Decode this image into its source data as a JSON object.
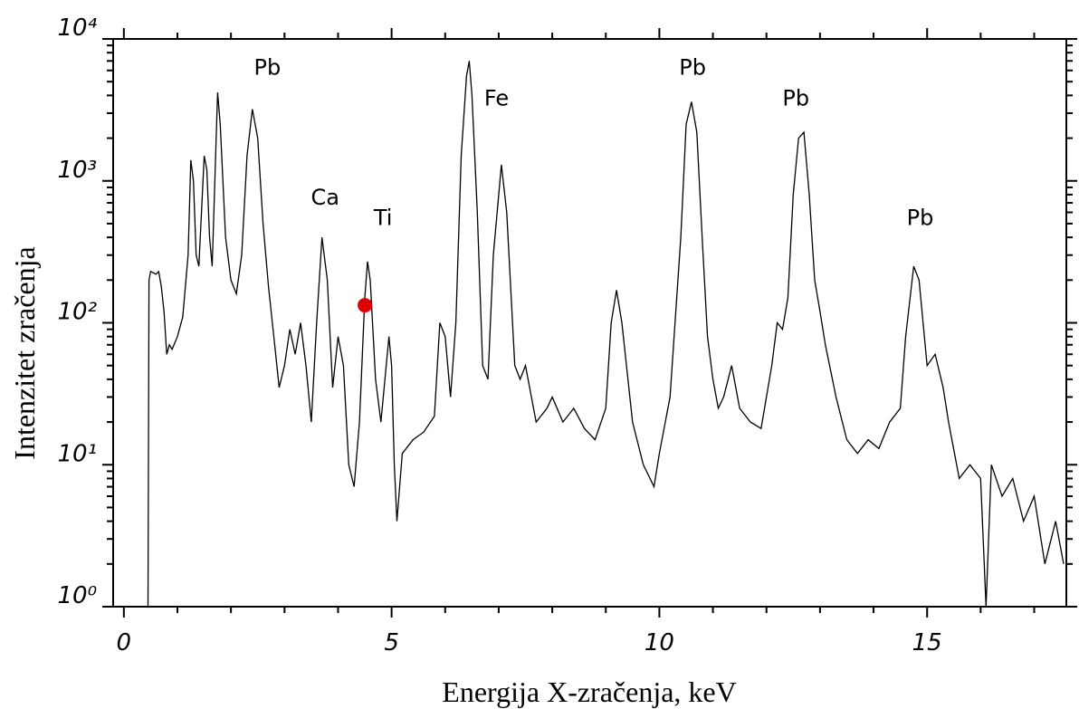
{
  "chart_data": {
    "type": "line",
    "xlabel": "Energija X-zračenja, keV",
    "ylabel": "Intenzitet zračenja",
    "log_y": true,
    "color": "#000000",
    "xlim": [
      -0.2,
      17.6
    ],
    "ylim": [
      1,
      10000
    ],
    "xticks": [
      0,
      5,
      10,
      15
    ],
    "xminorticks": [
      1,
      2,
      3,
      4,
      6,
      7,
      8,
      9,
      11,
      12,
      13,
      14,
      16,
      17
    ],
    "yticks": [
      {
        "value": 1,
        "label": "10⁰"
      },
      {
        "value": 10,
        "label": "10¹"
      },
      {
        "value": 100,
        "label": "10²"
      },
      {
        "value": 1000,
        "label": "10³"
      },
      {
        "value": 10000,
        "label": "10⁴"
      }
    ],
    "yminorticks": [
      2,
      3,
      4,
      5,
      6,
      7,
      8,
      9,
      20,
      30,
      40,
      50,
      60,
      70,
      80,
      90,
      200,
      300,
      400,
      500,
      600,
      700,
      800,
      900,
      2000,
      3000,
      4000,
      5000,
      6000,
      7000,
      8000,
      9000
    ],
    "x": [
      0.45,
      0.47,
      0.5,
      0.6,
      0.65,
      0.7,
      0.75,
      0.8,
      0.85,
      0.9,
      1.0,
      1.1,
      1.2,
      1.25,
      1.3,
      1.35,
      1.4,
      1.5,
      1.55,
      1.6,
      1.65,
      1.75,
      1.8,
      1.9,
      2.0,
      2.1,
      2.2,
      2.3,
      2.4,
      2.5,
      2.6,
      2.7,
      2.8,
      2.9,
      3.0,
      3.1,
      3.2,
      3.3,
      3.4,
      3.5,
      3.6,
      3.7,
      3.8,
      3.9,
      4.0,
      4.1,
      4.2,
      4.3,
      4.4,
      4.5,
      4.55,
      4.6,
      4.7,
      4.8,
      4.95,
      5.0,
      5.05,
      5.1,
      5.2,
      5.4,
      5.6,
      5.8,
      5.9,
      6.0,
      6.1,
      6.2,
      6.3,
      6.4,
      6.45,
      6.5,
      6.6,
      6.7,
      6.8,
      6.9,
      7.05,
      7.15,
      7.3,
      7.4,
      7.5,
      7.7,
      7.9,
      8.0,
      8.2,
      8.4,
      8.6,
      8.8,
      9.0,
      9.1,
      9.2,
      9.3,
      9.5,
      9.7,
      9.9,
      10.0,
      10.2,
      10.4,
      10.5,
      10.6,
      10.7,
      10.8,
      10.9,
      11.0,
      11.1,
      11.2,
      11.35,
      11.5,
      11.7,
      11.9,
      12.1,
      12.2,
      12.3,
      12.4,
      12.5,
      12.6,
      12.7,
      12.8,
      12.9,
      13.0,
      13.1,
      13.3,
      13.5,
      13.7,
      13.9,
      14.1,
      14.3,
      14.5,
      14.6,
      14.75,
      14.85,
      15.0,
      15.15,
      15.3,
      15.4,
      15.6,
      15.8,
      16.0,
      16.1,
      16.2,
      16.4,
      16.6,
      16.8,
      17.0,
      17.2,
      17.4,
      17.55
    ],
    "values": [
      1,
      200,
      230,
      220,
      230,
      180,
      120,
      60,
      70,
      65,
      80,
      110,
      300,
      1400,
      1000,
      300,
      250,
      1500,
      1200,
      400,
      250,
      4200,
      2500,
      400,
      200,
      160,
      300,
      1500,
      3200,
      2000,
      500,
      180,
      80,
      35,
      50,
      90,
      60,
      100,
      50,
      20,
      100,
      400,
      200,
      35,
      80,
      50,
      10,
      7,
      20,
      150,
      270,
      200,
      40,
      20,
      80,
      50,
      10,
      4,
      12,
      15,
      17,
      22,
      100,
      80,
      30,
      100,
      1500,
      5500,
      7000,
      4000,
      600,
      50,
      40,
      300,
      1300,
      600,
      50,
      40,
      50,
      20,
      25,
      30,
      20,
      25,
      18,
      15,
      25,
      100,
      170,
      100,
      20,
      10,
      7,
      12,
      30,
      400,
      2500,
      3600,
      2200,
      400,
      80,
      40,
      25,
      30,
      50,
      25,
      20,
      18,
      50,
      100,
      90,
      150,
      800,
      2000,
      2200,
      800,
      200,
      120,
      70,
      30,
      15,
      12,
      15,
      13,
      20,
      25,
      80,
      250,
      200,
      50,
      60,
      35,
      20,
      8,
      10,
      8,
      1,
      10,
      6,
      8,
      4,
      6,
      2,
      4,
      2
    ],
    "annotations": [
      {
        "text": "Pb",
        "x": 2.68,
        "y": 5600
      },
      {
        "text": "Ca",
        "x": 3.76,
        "y": 680
      },
      {
        "text": "Ti",
        "x": 4.84,
        "y": 490
      },
      {
        "text": "Fe",
        "x": 6.96,
        "y": 3400
      },
      {
        "text": "Pb",
        "x": 10.62,
        "y": 5600
      },
      {
        "text": "Pb",
        "x": 12.55,
        "y": 3400
      },
      {
        "text": "Pb",
        "x": 14.87,
        "y": 490
      }
    ],
    "marker": {
      "x": 4.5,
      "y": 133,
      "color": "#e00000"
    }
  }
}
